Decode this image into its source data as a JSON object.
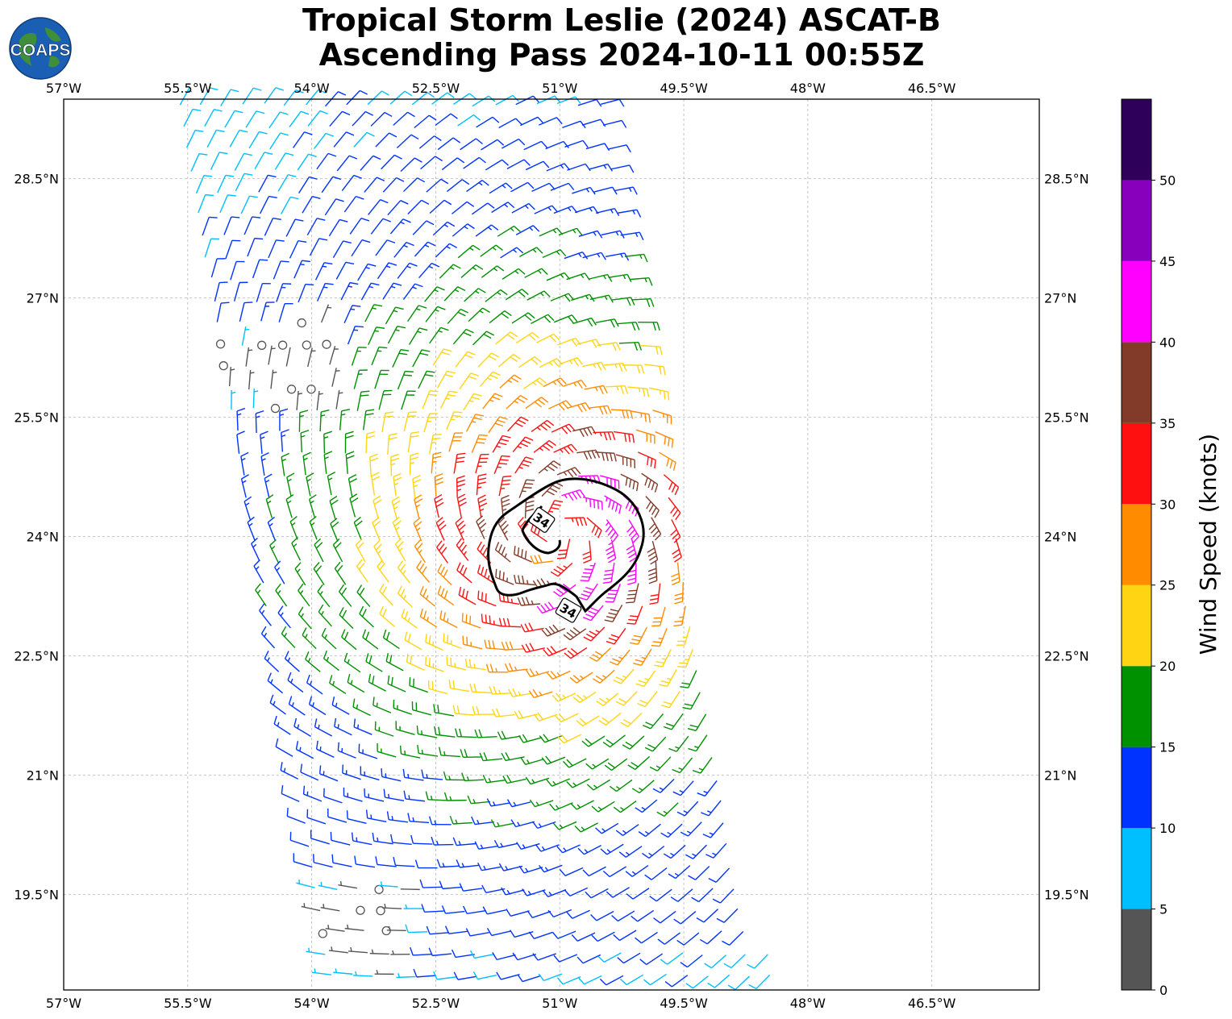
{
  "title": {
    "line1": "Tropical Storm Leslie (2024) ASCAT-B",
    "line2": "Ascending Pass 2024-10-11 00:55Z"
  },
  "logo": {
    "text": "COAPS",
    "icon": "globe-icon"
  },
  "axes": {
    "lon_labels": [
      "57°W",
      "55.5°W",
      "54°W",
      "52.5°W",
      "51°W",
      "49.5°W",
      "48°W",
      "46.5°W"
    ],
    "lat_labels": [
      "28.5°N",
      "27°N",
      "25.5°N",
      "24°N",
      "22.5°N",
      "21°N",
      "19.5°N"
    ],
    "lon_range": [
      -57,
      -45.2
    ],
    "lat_range": [
      18.3,
      29.5
    ],
    "grid": true
  },
  "colorbar": {
    "label": "Wind Speed (knots)",
    "ticks": [
      "0",
      "5",
      "10",
      "15",
      "20",
      "25",
      "30",
      "35",
      "40",
      "45",
      "50"
    ],
    "bins": [
      {
        "min": 0,
        "max": 5,
        "color": "#555555"
      },
      {
        "min": 5,
        "max": 10,
        "color": "#00bfff"
      },
      {
        "min": 10,
        "max": 15,
        "color": "#0033ff"
      },
      {
        "min": 15,
        "max": 20,
        "color": "#009100"
      },
      {
        "min": 20,
        "max": 25,
        "color": "#ffd513"
      },
      {
        "min": 25,
        "max": 30,
        "color": "#ff8c00"
      },
      {
        "min": 30,
        "max": 35,
        "color": "#ff1010"
      },
      {
        "min": 35,
        "max": 40,
        "color": "#813b28"
      },
      {
        "min": 40,
        "max": 45,
        "color": "#ff00ff"
      },
      {
        "min": 45,
        "max": 50,
        "color": "#8800bb"
      },
      {
        "min": 50,
        "max": 55,
        "color": "#2e0059"
      }
    ]
  },
  "contour": {
    "label": "34"
  },
  "storm": {
    "center_lon": -51.0,
    "center_lat": 24.05
  }
}
